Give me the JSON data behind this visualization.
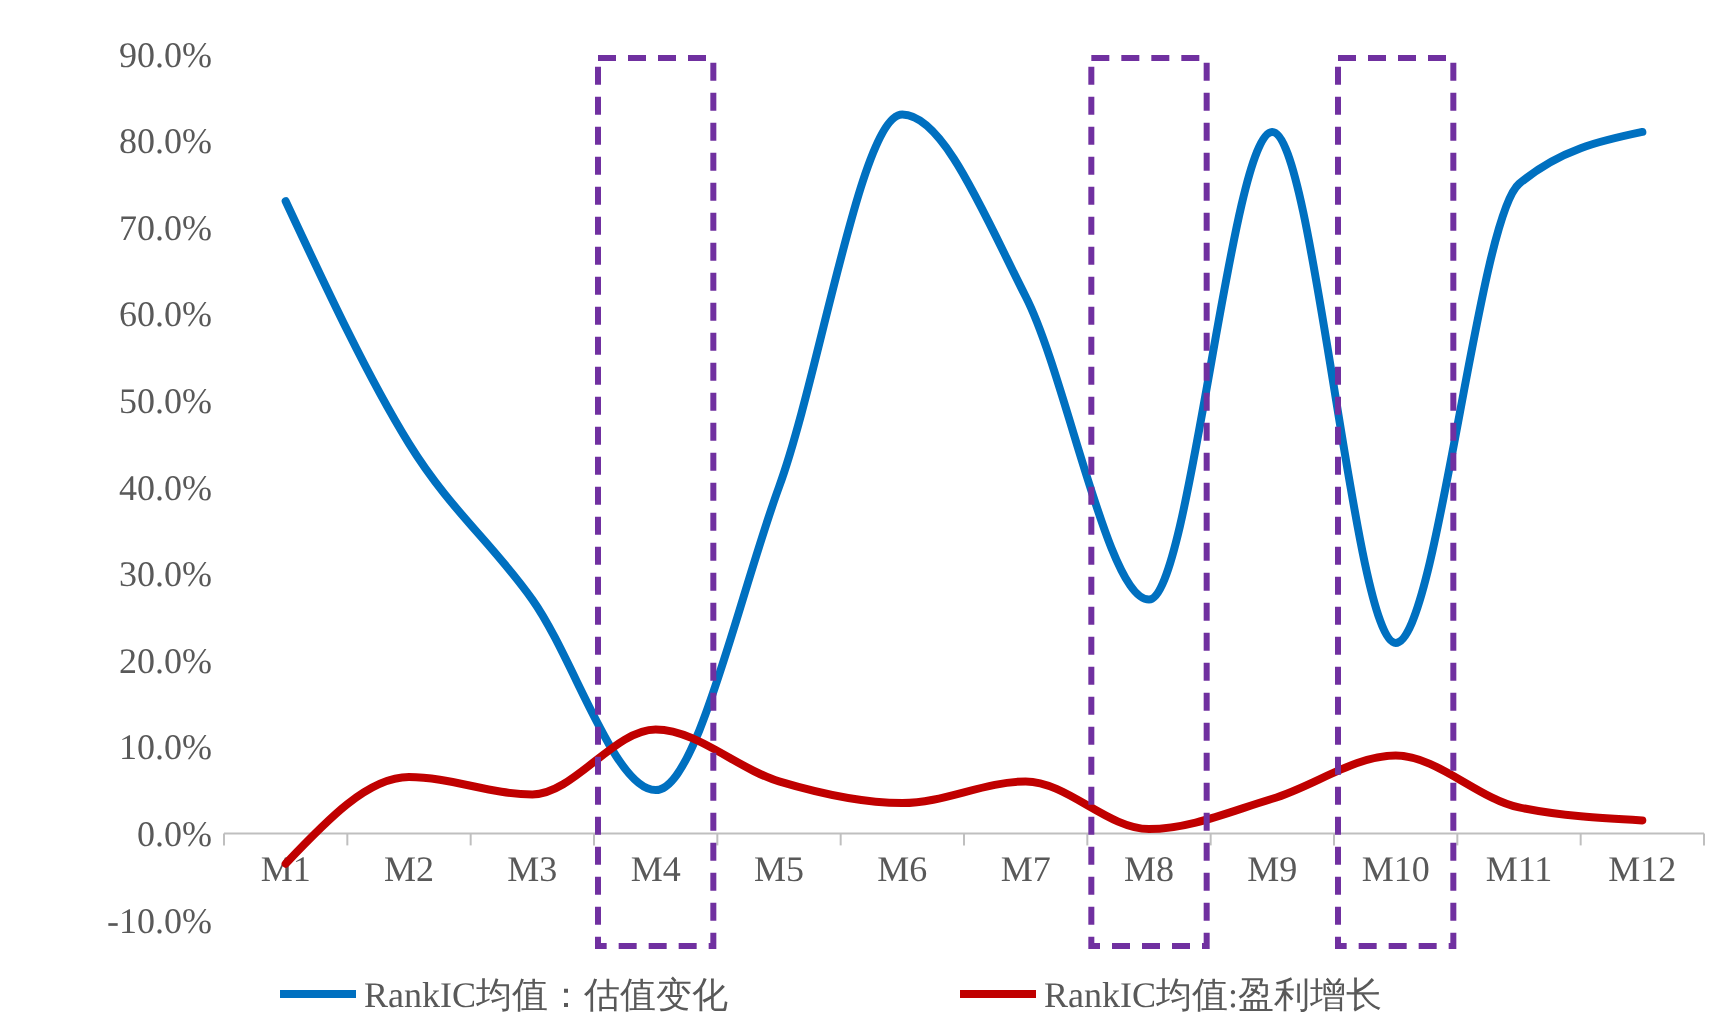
{
  "chart_data": {
    "type": "line",
    "categories": [
      "M1",
      "M2",
      "M3",
      "M4",
      "M5",
      "M6",
      "M7",
      "M8",
      "M9",
      "M10",
      "M11",
      "M12"
    ],
    "series": [
      {
        "name": "RankIC均值：估值变化",
        "color": "#0070c0",
        "values": [
          0.73,
          0.45,
          0.27,
          0.05,
          0.4,
          0.83,
          0.62,
          0.27,
          0.81,
          0.22,
          0.75,
          0.81
        ]
      },
      {
        "name": "RankIC均值:盈利增长",
        "color": "#c00000",
        "values": [
          -0.035,
          0.065,
          0.045,
          0.12,
          0.06,
          0.035,
          0.06,
          0.005,
          0.04,
          0.09,
          0.03,
          0.015
        ]
      }
    ],
    "ylim": [
      -0.1,
      0.9
    ],
    "yticks": [
      {
        "value": -0.1,
        "label": "-10.0%"
      },
      {
        "value": 0,
        "label": "0.0%"
      },
      {
        "value": 0.1,
        "label": "10.0%"
      },
      {
        "value": 0.2,
        "label": "20.0%"
      },
      {
        "value": 0.3,
        "label": "30.0%"
      },
      {
        "value": 0.4,
        "label": "40.0%"
      },
      {
        "value": 0.5,
        "label": "50.0%"
      },
      {
        "value": 0.6,
        "label": "60.0%"
      },
      {
        "value": 0.7,
        "label": "70.0%"
      },
      {
        "value": 0.8,
        "label": "80.0%"
      },
      {
        "value": 0.9,
        "label": "90.0%"
      }
    ],
    "grid": false,
    "legend": "bottom",
    "line_style": "solid"
  }
}
